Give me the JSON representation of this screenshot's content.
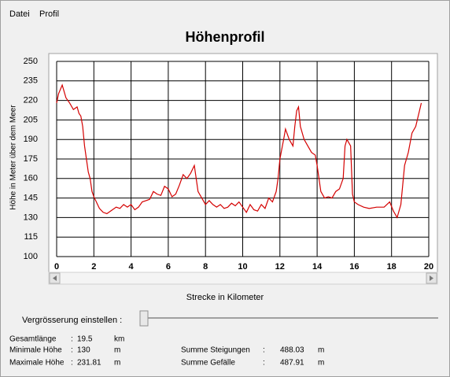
{
  "menu": [
    "Datei",
    "Profil"
  ],
  "chart_data": {
    "type": "line",
    "title": "Höhenprofil",
    "x_label": "Strecke in Kilometer",
    "y_label": "Höhe in Meter über dem Meer",
    "color": "#d40000",
    "grid": true,
    "xlim": [
      0,
      20
    ],
    "xticks": [
      0,
      2,
      4,
      6,
      8,
      10,
      12,
      14,
      16,
      18,
      20
    ],
    "ylim": [
      100,
      250
    ],
    "yticks": [
      100,
      115,
      130,
      145,
      160,
      175,
      190,
      205,
      220,
      235,
      250
    ],
    "x": [
      0,
      0.1,
      0.3,
      0.5,
      0.7,
      0.9,
      1.1,
      1.2,
      1.3,
      1.4,
      1.5,
      1.6,
      1.7,
      1.8,
      1.9,
      2.0,
      2.1,
      2.3,
      2.5,
      2.7,
      3.0,
      3.2,
      3.4,
      3.6,
      3.8,
      4.0,
      4.2,
      4.4,
      4.6,
      4.8,
      5.0,
      5.2,
      5.4,
      5.6,
      5.8,
      6.0,
      6.2,
      6.4,
      6.6,
      6.8,
      7.0,
      7.2,
      7.4,
      7.6,
      7.8,
      8.0,
      8.2,
      8.4,
      8.6,
      8.8,
      9.0,
      9.2,
      9.4,
      9.6,
      9.8,
      10.0,
      10.2,
      10.4,
      10.6,
      10.8,
      11.0,
      11.2,
      11.4,
      11.6,
      11.8,
      11.9,
      12.0,
      12.2,
      12.3,
      12.5,
      12.7,
      12.8,
      12.9,
      13.0,
      13.1,
      13.3,
      13.5,
      13.7,
      13.9,
      14.0,
      14.2,
      14.4,
      14.6,
      14.8,
      15.0,
      15.2,
      15.4,
      15.5,
      15.6,
      15.8,
      15.9,
      16.0,
      16.2,
      16.5,
      16.8,
      17.2,
      17.6,
      17.9,
      18.1,
      18.3,
      18.5,
      18.7,
      18.9,
      19.1,
      19.3,
      19.5,
      19.6
    ],
    "values": [
      218,
      225,
      231.81,
      222,
      218,
      213,
      215,
      210,
      208,
      200,
      185,
      175,
      165,
      160,
      150,
      146,
      143,
      137,
      134,
      133,
      136,
      138,
      137,
      140,
      138,
      140,
      136,
      138,
      142,
      143,
      144,
      150,
      148,
      147,
      154,
      152,
      146,
      148,
      155,
      163,
      160,
      164,
      170,
      150,
      145,
      140,
      143,
      140,
      138,
      140,
      137,
      138,
      141,
      139,
      142,
      138,
      134,
      140,
      136,
      135,
      140,
      137,
      145,
      142,
      150,
      160,
      175,
      190,
      198,
      190,
      185,
      200,
      212,
      215,
      200,
      190,
      185,
      180,
      178,
      170,
      150,
      145,
      146,
      145,
      150,
      152,
      160,
      185,
      190,
      185,
      148,
      142,
      140,
      138,
      137,
      138,
      138,
      142,
      135,
      130,
      140,
      170,
      180,
      195,
      200,
      212,
      218
    ]
  },
  "zoom_label": "Vergrösserung einstellen :",
  "separator": ":",
  "stats": [
    {
      "label": "Gesamtlänge",
      "value": 19.5,
      "unit": "km"
    },
    {
      "label": "Minimale Höhe",
      "value": 130,
      "unit": "m"
    },
    {
      "label": "Maximale Höhe",
      "value": 231.81,
      "unit": "m"
    },
    {
      "label": "Summe Steigungen",
      "value": 488.03,
      "unit": "m"
    },
    {
      "label": "Summe Gefälle",
      "value": 487.91,
      "unit": "m"
    }
  ]
}
